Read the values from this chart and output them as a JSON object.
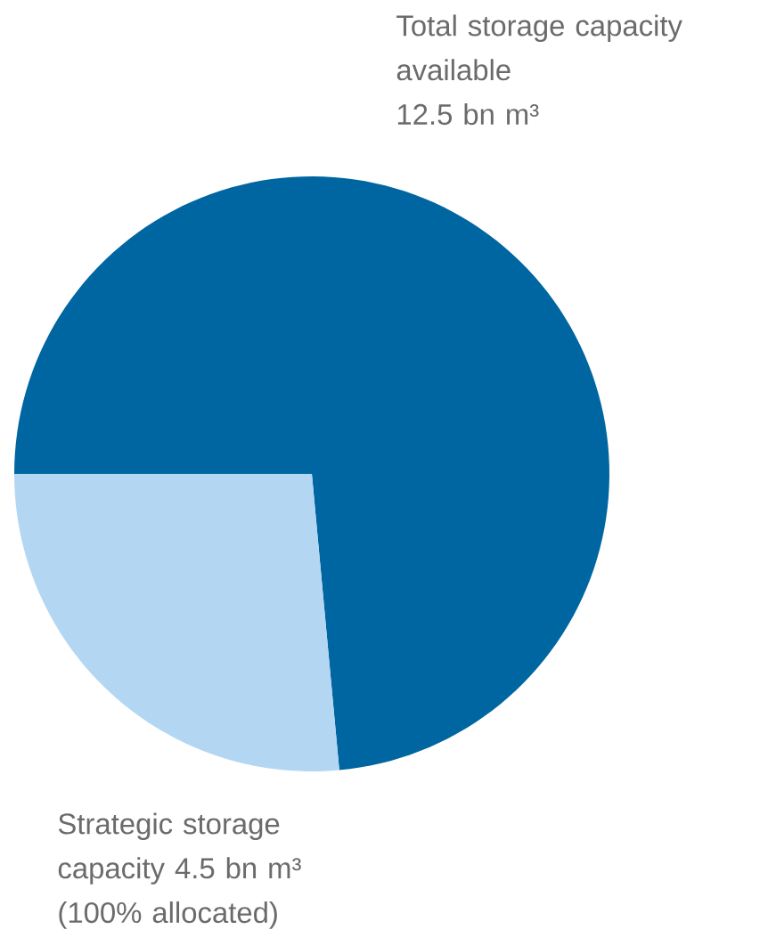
{
  "chart_data": {
    "type": "pie",
    "categories": [
      "Total storage capacity available",
      "Strategic storage capacity"
    ],
    "values": [
      12.5,
      4.5
    ],
    "value_labels": [
      "12.5 bn m³",
      "4.5 bn m³"
    ],
    "colors": [
      "#0066a1",
      "#b3d7f2"
    ],
    "annotations": [
      "(100% allocated)"
    ]
  }
}
